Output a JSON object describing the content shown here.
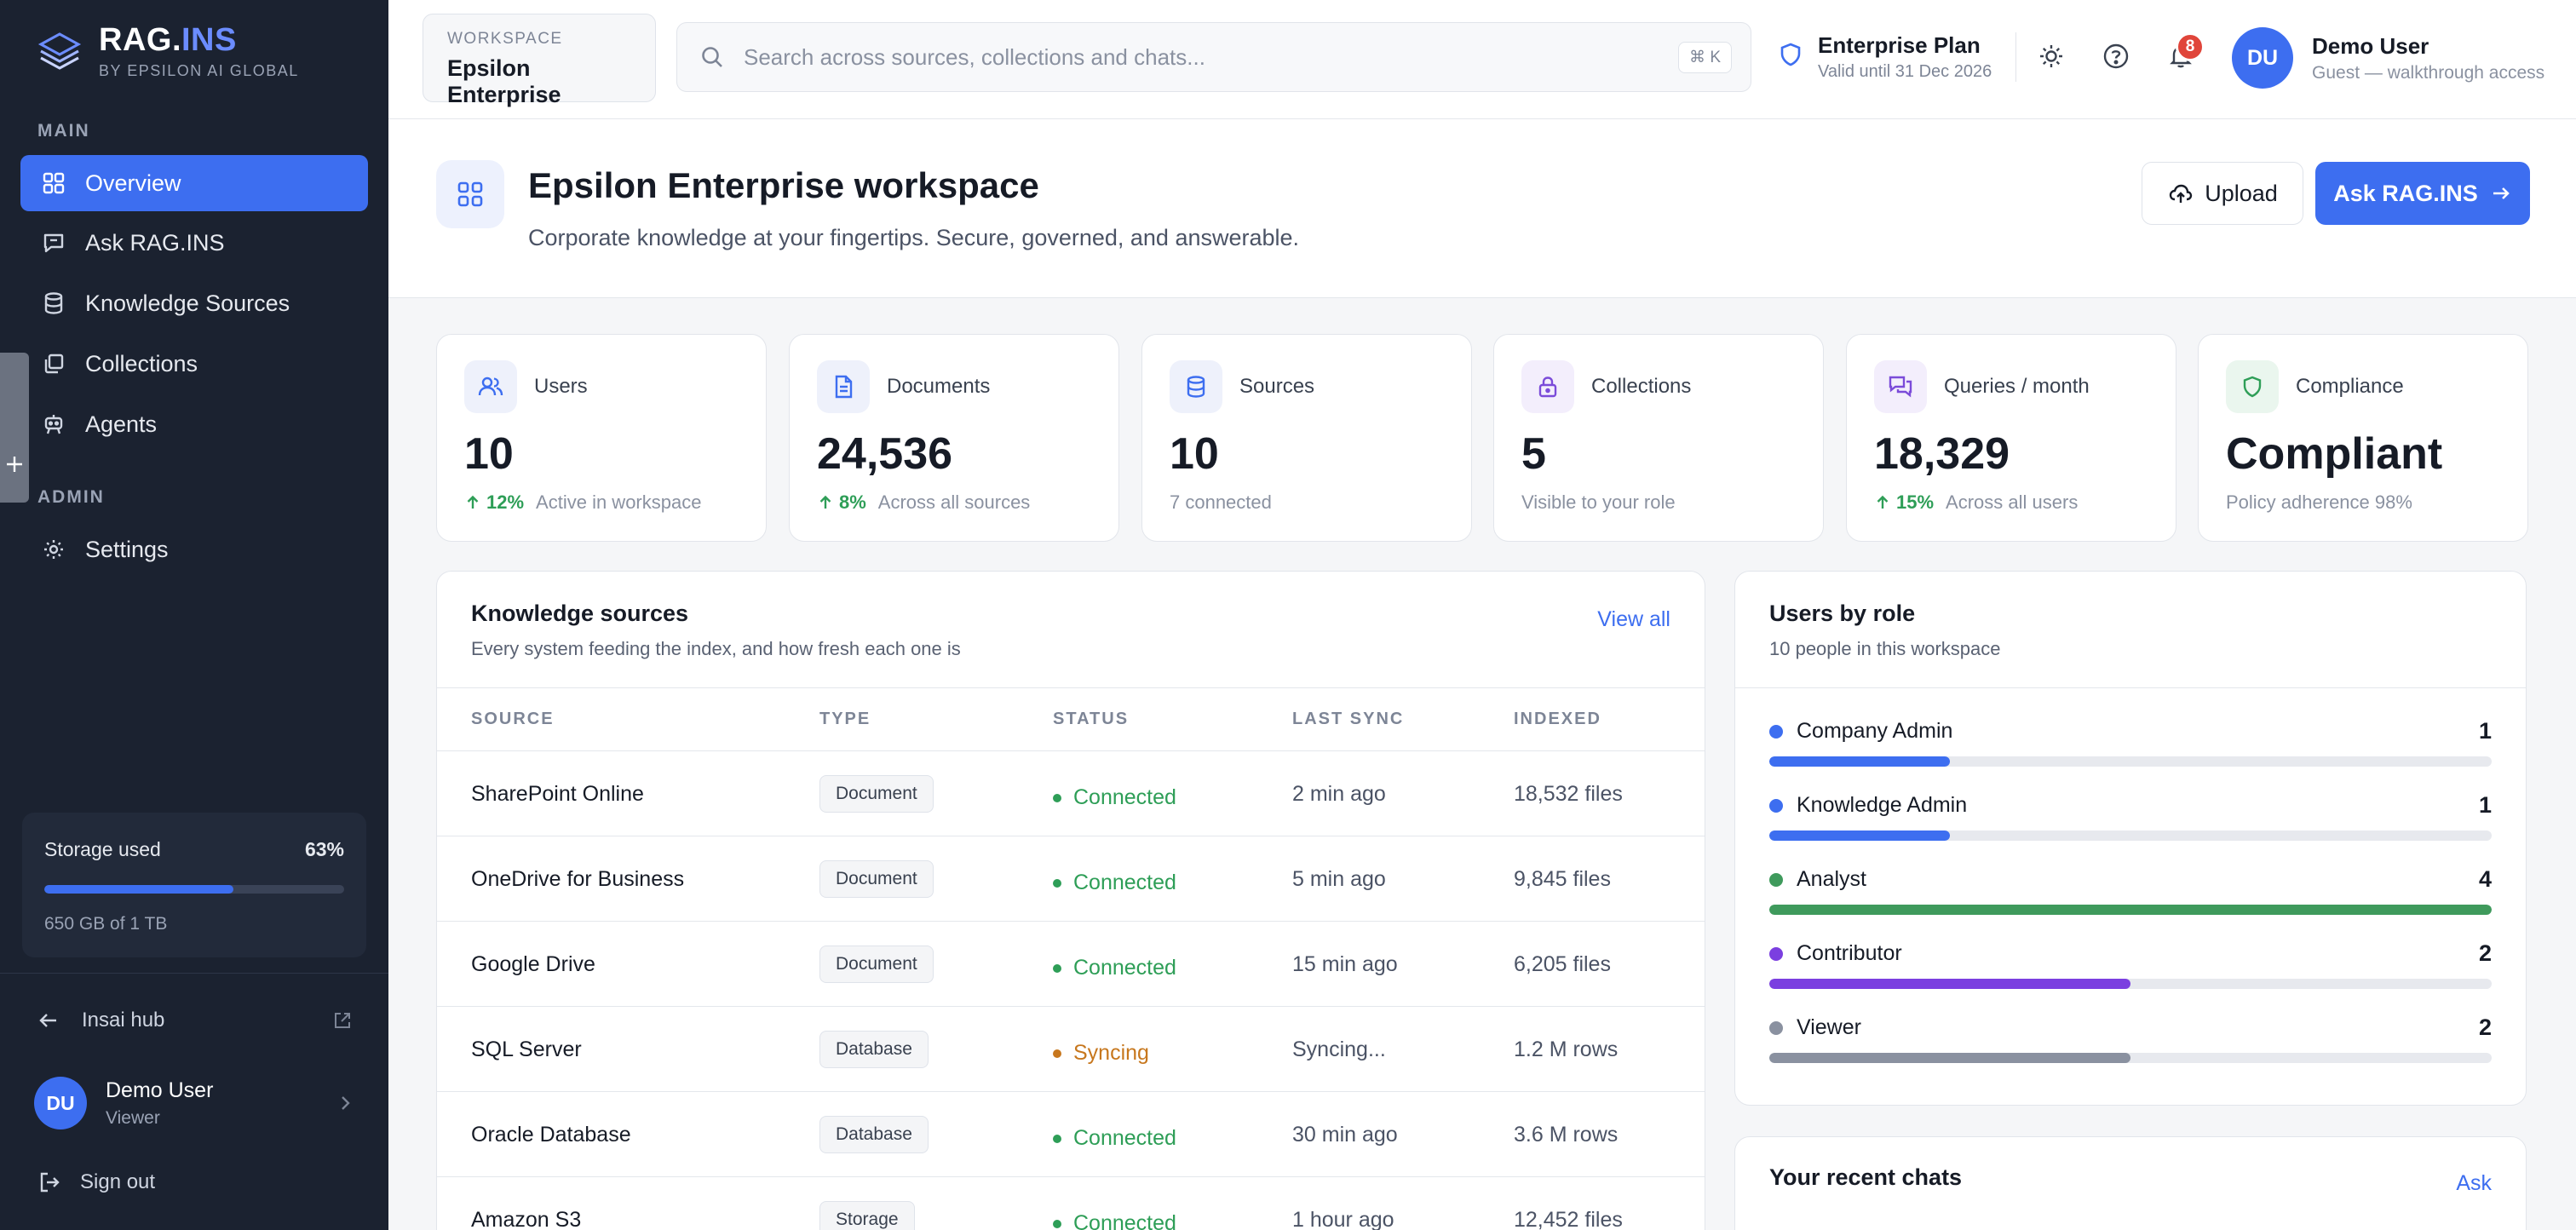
{
  "brand": {
    "name_main": "RAG.",
    "name_accent": "INS",
    "tagline": "BY EPSILON AI GLOBAL"
  },
  "sidebar": {
    "main_label": "MAIN",
    "admin_label": "ADMIN",
    "items": [
      {
        "label": "Overview",
        "icon": "grid-icon"
      },
      {
        "label": "Ask RAG.INS",
        "icon": "chat-icon"
      },
      {
        "label": "Knowledge Sources",
        "icon": "database-icon"
      },
      {
        "label": "Collections",
        "icon": "stack-icon"
      },
      {
        "label": "Agents",
        "icon": "robot-icon"
      }
    ],
    "admin_items": [
      {
        "label": "Settings",
        "icon": "gear-icon"
      }
    ],
    "storage": {
      "label": "Storage used",
      "percent_text": "63%",
      "fill_fraction": 0.63,
      "note": "650 GB of 1 TB"
    },
    "hub_label": "Insai hub",
    "user": {
      "initials": "DU",
      "name": "Demo User",
      "role": "Viewer"
    },
    "signout": "Sign out"
  },
  "topbar": {
    "workspace_label": "WORKSPACE",
    "workspace_name": "Epsilon Enterprise",
    "search_placeholder": "Search across sources, collections and chats...",
    "search_shortcut": "⌘ K",
    "plan_title": "Enterprise Plan",
    "plan_sub": "Valid until 31 Dec 2026",
    "notifications": "8",
    "user": {
      "initials": "DU",
      "name": "Demo User",
      "sub": "Guest — walkthrough access"
    }
  },
  "header": {
    "title": "Epsilon Enterprise workspace",
    "subtitle": "Corporate knowledge at your fingertips. Secure, governed, and answerable.",
    "upload_label": "Upload",
    "ask_label": "Ask RAG.INS"
  },
  "stats": [
    {
      "label": "Users",
      "value": "10",
      "trend": "12%",
      "note": "Active in workspace",
      "icon": "users-icon",
      "bg": "#eef1fb",
      "fg": "#3d6ef0"
    },
    {
      "label": "Documents",
      "value": "24,536",
      "trend": "8%",
      "note": "Across all sources",
      "icon": "document-icon",
      "bg": "#eef1fb",
      "fg": "#3d6ef0"
    },
    {
      "label": "Sources",
      "value": "10",
      "trend": "",
      "note": "7 connected",
      "icon": "database-icon",
      "bg": "#eef1fb",
      "fg": "#3d6ef0"
    },
    {
      "label": "Collections",
      "value": "5",
      "trend": "",
      "note": "Visible to your role",
      "icon": "lock-icon",
      "bg": "#f3eefc",
      "fg": "#7b4bd9"
    },
    {
      "label": "Queries / month",
      "value": "18,329",
      "trend": "15%",
      "note": "Across all users",
      "icon": "chat-bubbles-icon",
      "bg": "#f3eefc",
      "fg": "#7b4bd9"
    },
    {
      "label": "Compliance",
      "value": "Compliant",
      "trend": "",
      "note": "Policy adherence 98%",
      "icon": "shield-icon",
      "bg": "#eaf6ee",
      "fg": "#2e9e57"
    }
  ],
  "sources": {
    "title": "Knowledge sources",
    "subtitle": "Every system feeding the index, and how fresh each one is",
    "view_all": "View all",
    "columns": [
      "SOURCE",
      "TYPE",
      "STATUS",
      "LAST SYNC",
      "INDEXED"
    ],
    "rows": [
      {
        "source": "SharePoint Online",
        "type": "Document",
        "status": "Connected",
        "sync": "2 min ago",
        "indexed": "18,532 files"
      },
      {
        "source": "OneDrive for Business",
        "type": "Document",
        "status": "Connected",
        "sync": "5 min ago",
        "indexed": "9,845 files"
      },
      {
        "source": "Google Drive",
        "type": "Document",
        "status": "Connected",
        "sync": "15 min ago",
        "indexed": "6,205 files"
      },
      {
        "source": "SQL Server",
        "type": "Database",
        "status": "Syncing",
        "sync": "Syncing...",
        "indexed": "1.2 M rows"
      },
      {
        "source": "Oracle Database",
        "type": "Database",
        "status": "Connected",
        "sync": "30 min ago",
        "indexed": "3.6 M rows"
      },
      {
        "source": "Amazon S3",
        "type": "Storage",
        "status": "Connected",
        "sync": "1 hour ago",
        "indexed": "12,452 files"
      }
    ],
    "status_colors": {
      "Connected": "#2e9e57",
      "Syncing": "#c7771d"
    }
  },
  "roles": {
    "title": "Users by role",
    "subtitle": "10 people in this workspace",
    "total": 4,
    "items": [
      {
        "name": "Company Admin",
        "count": "1",
        "value": 1,
        "color": "#3d6ef0"
      },
      {
        "name": "Knowledge Admin",
        "count": "1",
        "value": 1,
        "color": "#3d6ef0"
      },
      {
        "name": "Analyst",
        "count": "4",
        "value": 4,
        "color": "#3f9a5c"
      },
      {
        "name": "Contributor",
        "count": "2",
        "value": 2,
        "color": "#7b3fe0"
      },
      {
        "name": "Viewer",
        "count": "2",
        "value": 2,
        "color": "#8a91a0"
      }
    ]
  },
  "recent_chats": {
    "title": "Your recent chats",
    "link": "Ask"
  }
}
